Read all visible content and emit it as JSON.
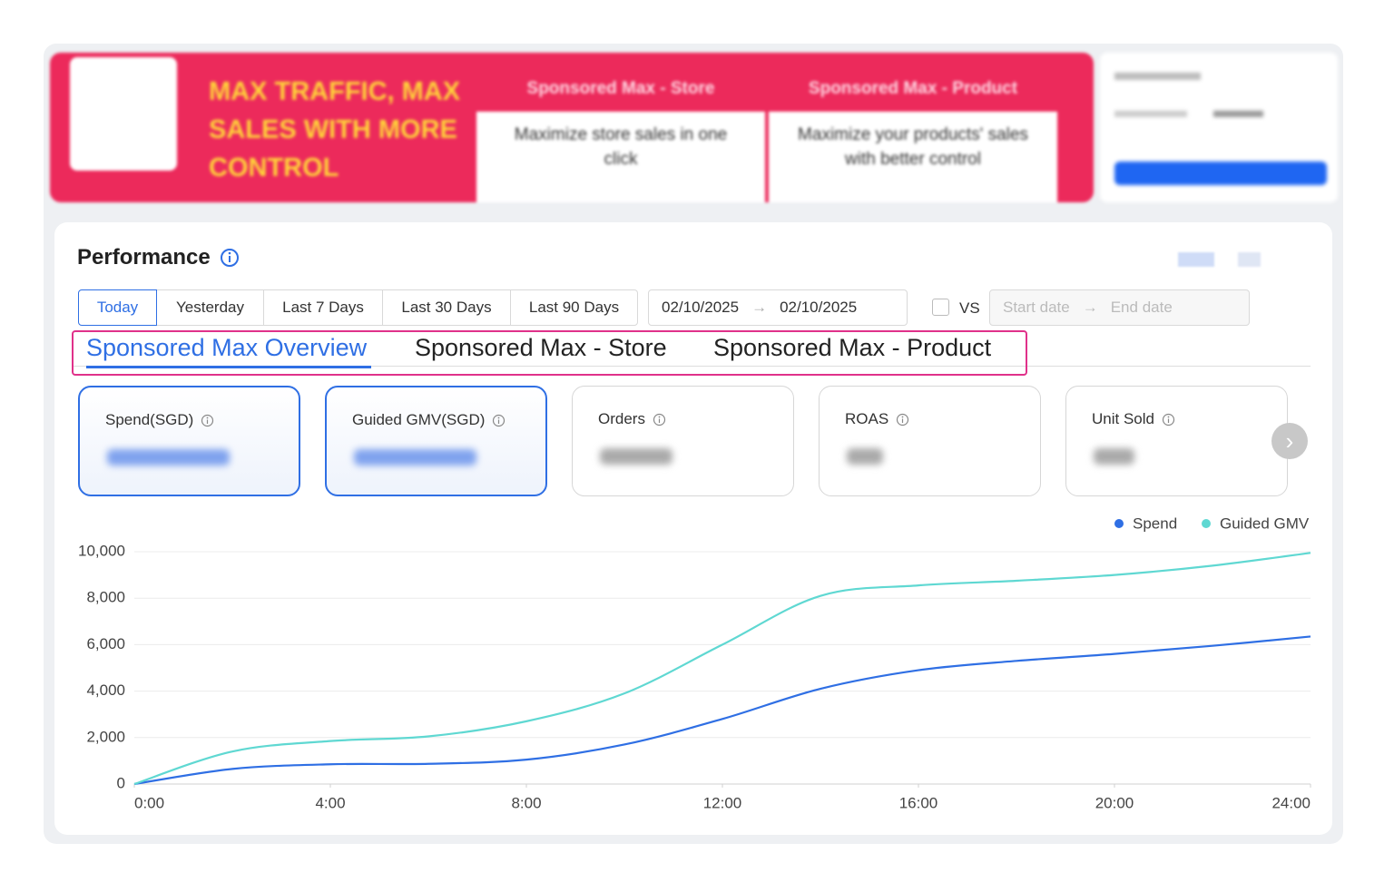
{
  "banner": {
    "headline": "MAX TRAFFIC, MAX SALES WITH MORE CONTROL",
    "cards": [
      {
        "title": "Sponsored Max - Store",
        "text": "Maximize store sales in one click"
      },
      {
        "title": "Sponsored Max - Product",
        "text": "Maximize your products' sales with better control"
      }
    ]
  },
  "performance": {
    "title": "Performance",
    "date_ranges": [
      "Today",
      "Yesterday",
      "Last 7 Days",
      "Last 30 Days",
      "Last 90 Days"
    ],
    "start_date": "02/10/2025",
    "end_date": "02/10/2025",
    "vs": "VS",
    "compare_start": "Start date",
    "compare_end": "End date",
    "tabs": [
      "Sponsored Max Overview",
      "Sponsored Max - Store",
      "Sponsored Max - Product"
    ],
    "metrics": [
      "Spend(SGD)",
      "Guided GMV(SGD)",
      "Orders",
      "ROAS",
      "Unit Sold"
    ]
  },
  "chart_data": {
    "type": "line",
    "x": [
      0,
      2,
      4,
      6,
      8,
      10,
      12,
      14,
      16,
      18,
      20,
      22,
      24
    ],
    "xlim": [
      0,
      24
    ],
    "xticks": [
      {
        "value": 0,
        "label": "0:00"
      },
      {
        "value": 4,
        "label": "4:00"
      },
      {
        "value": 8,
        "label": "8:00"
      },
      {
        "value": 12,
        "label": "12:00"
      },
      {
        "value": 16,
        "label": "16:00"
      },
      {
        "value": 20,
        "label": "20:00"
      },
      {
        "value": 24,
        "label": "24:00"
      }
    ],
    "ylim": [
      0,
      10000
    ],
    "yticks": [
      0,
      {
        "value": 2000,
        "label": "2,000"
      },
      {
        "value": 4000,
        "label": "4,000"
      },
      {
        "value": 6000,
        "label": "6,000"
      },
      {
        "value": 8000,
        "label": "8,000"
      },
      {
        "value": 10000,
        "label": "10,000"
      }
    ],
    "grid": true,
    "legend": "top-right",
    "series": [
      {
        "name": "Spend",
        "color": "#2f6fe4",
        "values": [
          0,
          650,
          850,
          870,
          1050,
          1700,
          2800,
          4100,
          4900,
          5300,
          5600,
          5950,
          6350
        ]
      },
      {
        "name": "Guided GMV",
        "color": "#5fd8d2",
        "values": [
          0,
          1400,
          1850,
          2050,
          2700,
          3900,
          6000,
          8100,
          8550,
          8750,
          9000,
          9400,
          9950
        ]
      }
    ]
  }
}
